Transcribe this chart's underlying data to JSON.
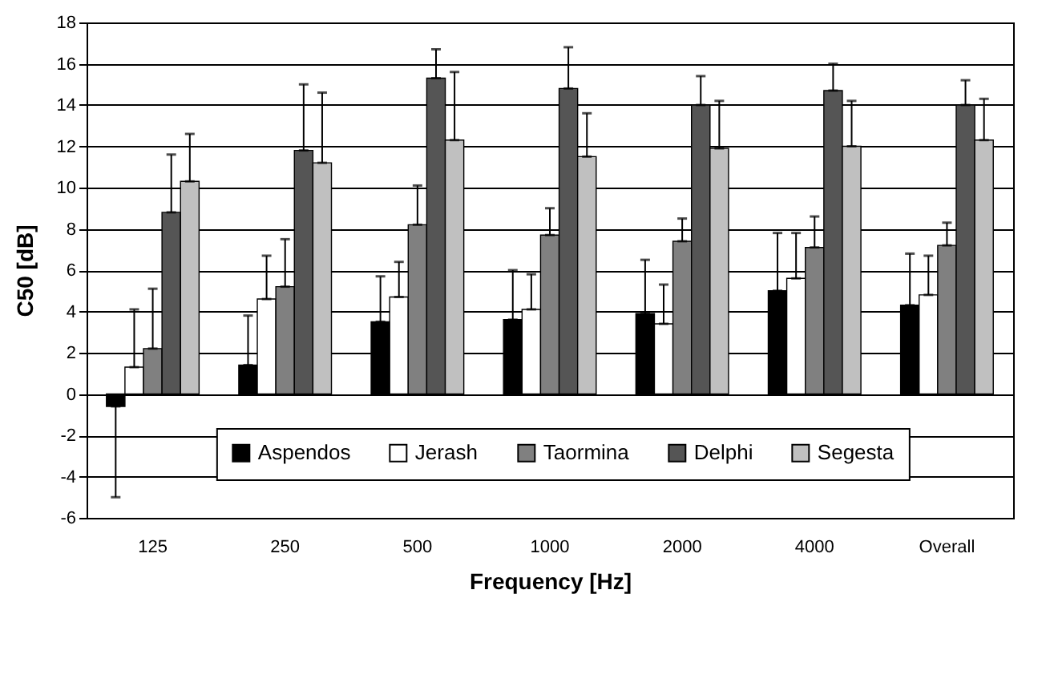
{
  "chart_data": {
    "type": "bar",
    "xlabel": "Frequency [Hz]",
    "ylabel": "C50 [dB]",
    "categories": [
      "125",
      "250",
      "500",
      "1000",
      "2000",
      "4000",
      "Overall"
    ],
    "ylim": [
      -6,
      18
    ],
    "yticks": [
      -6,
      -4,
      -2,
      0,
      2,
      4,
      6,
      8,
      10,
      12,
      14,
      16,
      18
    ],
    "grid": "y",
    "legend": "bottom",
    "series": [
      {
        "name": "Aspendos",
        "color": "#000000",
        "values": [
          -0.6,
          1.4,
          3.5,
          3.6,
          3.9,
          5.0,
          4.3
        ],
        "errors": [
          [
            -5.0,
            -0.6
          ],
          [
            1.4,
            3.8
          ],
          [
            3.5,
            5.7
          ],
          [
            3.6,
            6.0
          ],
          [
            3.9,
            6.5
          ],
          [
            5.0,
            7.8
          ],
          [
            4.3,
            6.8
          ]
        ]
      },
      {
        "name": "Jerash",
        "color": "#ffffff",
        "values": [
          1.3,
          4.6,
          4.7,
          4.1,
          3.4,
          5.6,
          4.8
        ],
        "errors": [
          [
            1.3,
            4.1
          ],
          [
            4.6,
            6.7
          ],
          [
            4.7,
            6.4
          ],
          [
            4.1,
            5.8
          ],
          [
            3.4,
            5.3
          ],
          [
            5.6,
            7.8
          ],
          [
            4.8,
            6.7
          ]
        ]
      },
      {
        "name": "Taormina",
        "color": "#808080",
        "values": [
          2.2,
          5.2,
          8.2,
          7.7,
          7.4,
          7.1,
          7.2
        ],
        "errors": [
          [
            2.2,
            5.1
          ],
          [
            5.2,
            7.5
          ],
          [
            8.2,
            10.1
          ],
          [
            7.7,
            9.0
          ],
          [
            7.4,
            8.5
          ],
          [
            7.1,
            8.6
          ],
          [
            7.2,
            8.3
          ]
        ]
      },
      {
        "name": "Delphi",
        "color": "#555555",
        "values": [
          8.8,
          11.8,
          15.3,
          14.8,
          14.0,
          14.7,
          14.0
        ],
        "errors": [
          [
            8.8,
            11.6
          ],
          [
            11.8,
            15.0
          ],
          [
            15.3,
            16.7
          ],
          [
            14.8,
            16.8
          ],
          [
            14.0,
            15.4
          ],
          [
            14.7,
            16.0
          ],
          [
            14.0,
            15.2
          ]
        ]
      },
      {
        "name": "Segesta",
        "color": "#c0c0c0",
        "values": [
          10.3,
          11.2,
          12.3,
          11.5,
          11.9,
          12.0,
          12.3
        ],
        "errors": [
          [
            10.3,
            12.6
          ],
          [
            11.2,
            14.6
          ],
          [
            12.3,
            15.6
          ],
          [
            11.5,
            13.6
          ],
          [
            11.9,
            14.2
          ],
          [
            12.0,
            14.2
          ],
          [
            12.3,
            14.3
          ]
        ]
      }
    ]
  }
}
